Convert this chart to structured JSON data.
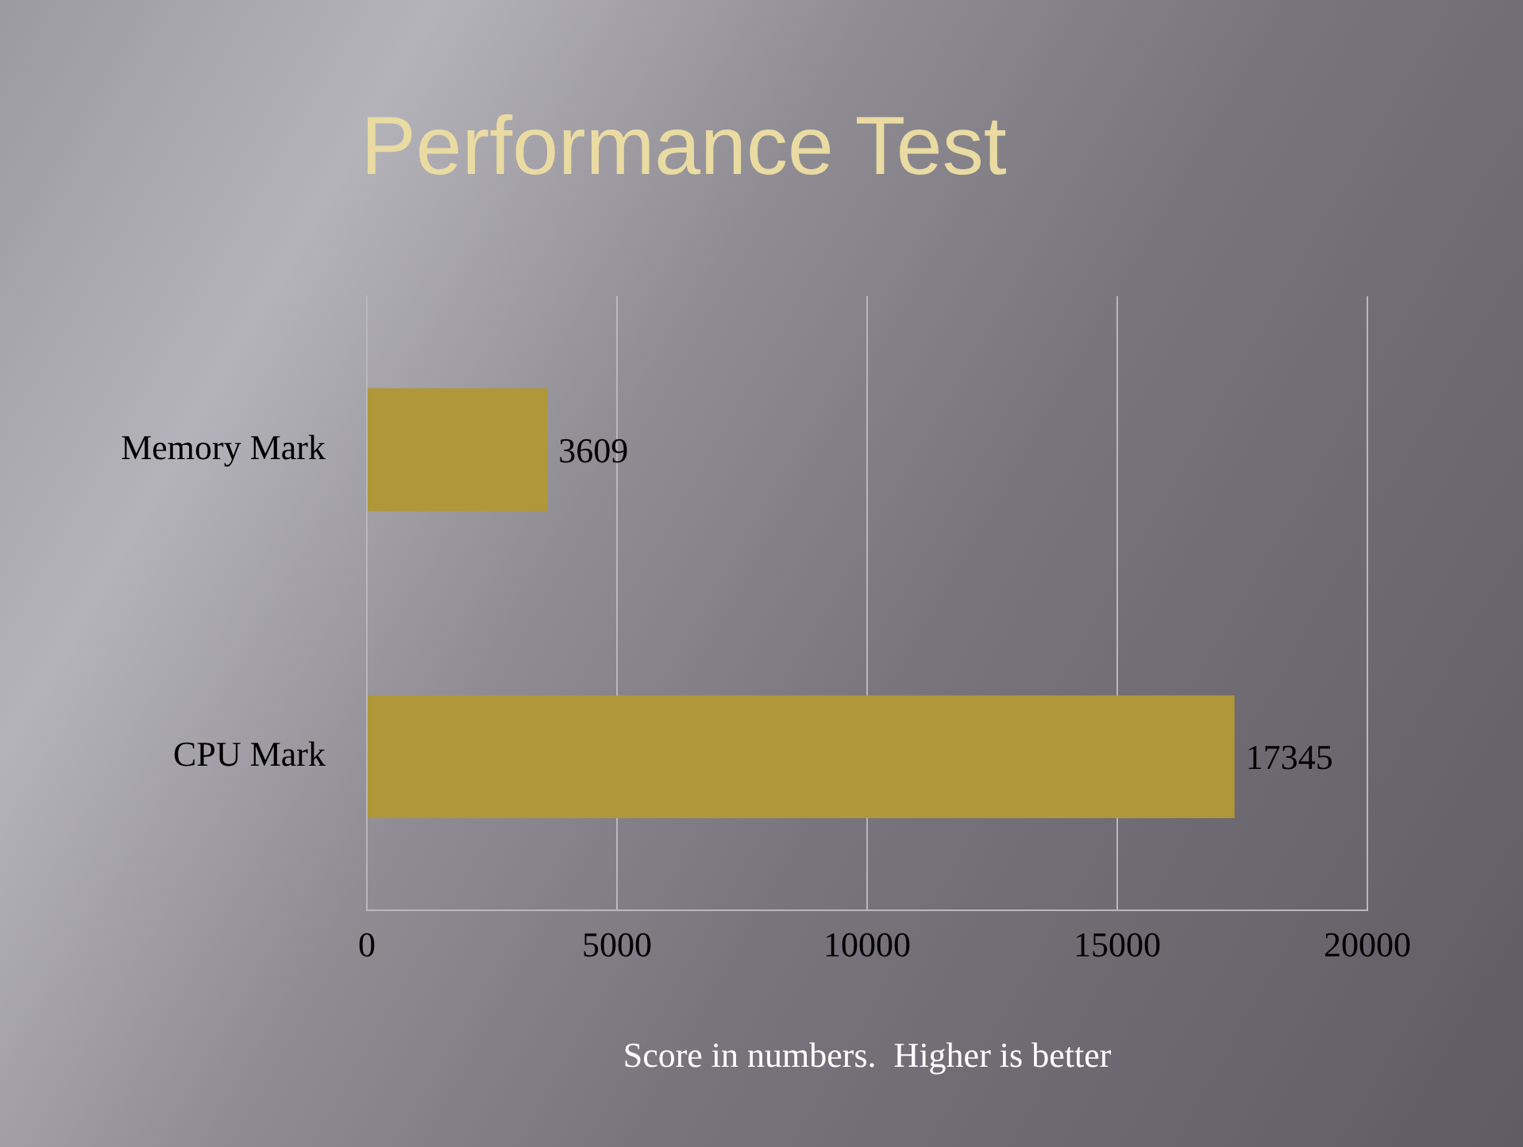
{
  "chart_data": {
    "type": "bar",
    "orientation": "horizontal",
    "title": "Performance Test",
    "xlabel": "Score in numbers.  Higher is better",
    "categories": [
      "Memory Mark",
      "CPU Mark"
    ],
    "values": [
      3609,
      17345
    ],
    "color": "#b0973a",
    "xlim": [
      0,
      20000
    ],
    "xticks": [
      0,
      5000,
      10000,
      15000,
      20000
    ],
    "grid": "x",
    "data_labels": true
  }
}
